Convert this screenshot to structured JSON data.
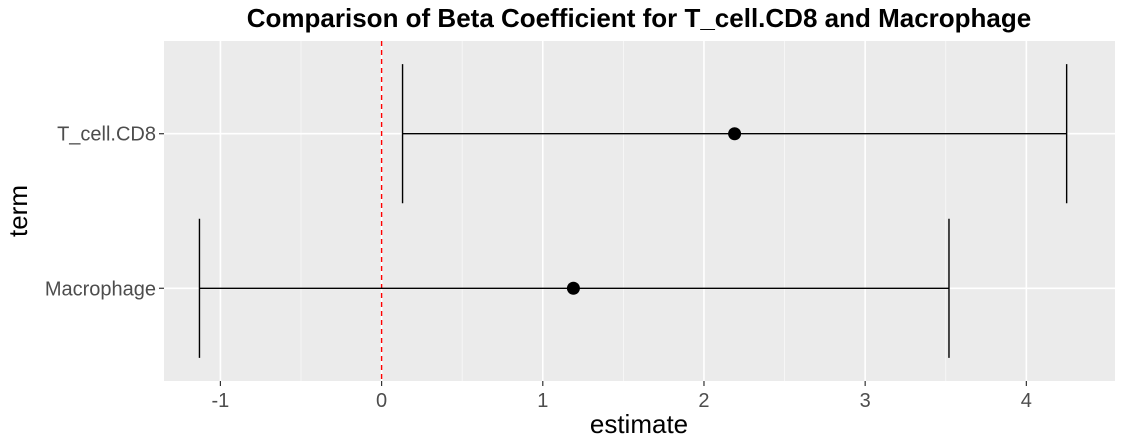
{
  "chart_data": {
    "type": "errorbar",
    "title": "Comparison of Beta Coefficient for T_cell.CD8 and Macrophage",
    "xlabel": "estimate",
    "ylabel": "term",
    "xlim": [
      -1.35,
      4.55
    ],
    "xticks": [
      -1,
      0,
      1,
      2,
      3,
      4
    ],
    "xtick_labels": [
      "-1",
      "0",
      "1",
      "2",
      "3",
      "4"
    ],
    "categories": [
      "T_cell.CD8",
      "Macrophage"
    ],
    "estimates": [
      2.19,
      1.19
    ],
    "ci_low": [
      0.13,
      -1.13
    ],
    "ci_high": [
      4.25,
      3.52
    ],
    "reference_line": {
      "x": 0,
      "color": "#ff0000",
      "style": "dashed"
    },
    "grid": true,
    "colors": {
      "panel_background": "#ebebeb",
      "grid_major": "#ffffff",
      "points": "#000000",
      "errorbars": "#000000",
      "reference_line": "#ff0000"
    }
  }
}
